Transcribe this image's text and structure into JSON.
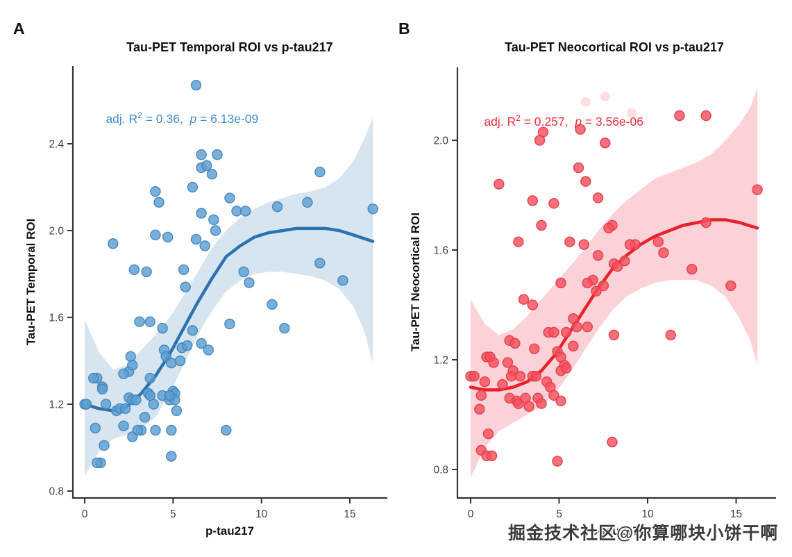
{
  "watermark": "掘金技术社区@你算哪块小饼干啊",
  "chart_data": [
    {
      "type": "scatter",
      "letter": "A",
      "title": "Tau-PET Temporal ROI vs p-tau217",
      "xlabel": "p-tau217",
      "ylabel": "Tau-PET Temporal ROI",
      "annotation": {
        "prefix": "adj. R",
        "sup": "2",
        "mid": " = 0.36,  ",
        "p": "p",
        "suffix": " = 6.13e-09"
      },
      "legend": "none",
      "grid": false,
      "x_ticks": [
        0,
        5,
        10,
        15
      ],
      "y_ticks": [
        0.8,
        1.2,
        1.6,
        2.0,
        2.4
      ],
      "xlim": [
        -0.7,
        17.0
      ],
      "ylim": [
        0.77,
        2.76
      ],
      "colors": {
        "point": "#5C9FD3",
        "point_stroke": "#4384B8",
        "curve": "#2B72B0",
        "band": "#C9DCEC",
        "annotation": "#3F8FCE"
      },
      "points": [
        [
          6.3,
          2.67
        ],
        [
          6.6,
          2.35
        ],
        [
          7.5,
          2.35
        ],
        [
          6.6,
          2.29
        ],
        [
          6.9,
          2.3
        ],
        [
          7.2,
          2.26
        ],
        [
          6.1,
          2.2
        ],
        [
          4.0,
          2.18
        ],
        [
          4.2,
          2.13
        ],
        [
          6.6,
          2.08
        ],
        [
          7.3,
          2.05
        ],
        [
          7.4,
          2.0
        ],
        [
          4.0,
          1.98
        ],
        [
          4.7,
          1.97
        ],
        [
          6.3,
          1.96
        ],
        [
          6.8,
          1.93
        ],
        [
          1.6,
          1.94
        ],
        [
          2.8,
          1.82
        ],
        [
          3.5,
          1.81
        ],
        [
          5.6,
          1.82
        ],
        [
          5.7,
          1.74
        ],
        [
          13.3,
          2.27
        ],
        [
          12.6,
          2.13
        ],
        [
          10.9,
          2.11
        ],
        [
          16.3,
          2.1
        ],
        [
          8.6,
          2.09
        ],
        [
          9.1,
          2.09
        ],
        [
          8.2,
          2.15
        ],
        [
          13.3,
          1.85
        ],
        [
          9.0,
          1.81
        ],
        [
          14.6,
          1.77
        ],
        [
          9.3,
          1.76
        ],
        [
          3.1,
          1.58
        ],
        [
          3.7,
          1.58
        ],
        [
          4.4,
          1.55
        ],
        [
          6.1,
          1.54
        ],
        [
          6.6,
          1.48
        ],
        [
          7.0,
          1.45
        ],
        [
          4.5,
          1.45
        ],
        [
          4.6,
          1.42
        ],
        [
          4.9,
          1.39
        ],
        [
          5.4,
          1.4
        ],
        [
          5.5,
          1.46
        ],
        [
          5.8,
          1.47
        ],
        [
          2.6,
          1.42
        ],
        [
          0.7,
          1.32
        ],
        [
          0.5,
          1.32
        ],
        [
          1.0,
          1.28
        ],
        [
          1.0,
          1.27
        ],
        [
          2.5,
          1.35
        ],
        [
          2.2,
          1.34
        ],
        [
          2.7,
          1.38
        ],
        [
          3.7,
          1.32
        ],
        [
          3.6,
          1.25
        ],
        [
          3.7,
          1.24
        ],
        [
          4.4,
          1.24
        ],
        [
          5.0,
          1.26
        ],
        [
          5.1,
          1.25
        ],
        [
          0.0,
          1.2
        ],
        [
          0.1,
          1.2
        ],
        [
          1.2,
          1.2
        ],
        [
          1.8,
          1.17
        ],
        [
          2.0,
          1.18
        ],
        [
          2.3,
          1.18
        ],
        [
          2.5,
          1.23
        ],
        [
          2.7,
          1.22
        ],
        [
          2.9,
          1.22
        ],
        [
          3.9,
          1.2
        ],
        [
          4.8,
          1.22
        ],
        [
          5.1,
          1.22
        ],
        [
          4.8,
          1.24
        ],
        [
          5.2,
          1.17
        ],
        [
          0.6,
          1.09
        ],
        [
          2.2,
          1.1
        ],
        [
          3.2,
          1.08
        ],
        [
          2.7,
          1.05
        ],
        [
          3.0,
          1.08
        ],
        [
          4.0,
          1.08
        ],
        [
          4.9,
          1.08
        ],
        [
          8.0,
          1.08
        ],
        [
          3.4,
          1.14
        ],
        [
          1.1,
          1.01
        ],
        [
          0.9,
          0.93
        ],
        [
          0.7,
          0.93
        ],
        [
          4.9,
          0.96
        ],
        [
          10.6,
          1.66
        ],
        [
          11.3,
          1.55
        ],
        [
          8.2,
          1.57
        ]
      ],
      "pale_points": [],
      "curve": [
        [
          0,
          1.2
        ],
        [
          0.8,
          1.18
        ],
        [
          1.6,
          1.17
        ],
        [
          2.4,
          1.19
        ],
        [
          3.2,
          1.25
        ],
        [
          4,
          1.33
        ],
        [
          4.8,
          1.43
        ],
        [
          5.6,
          1.55
        ],
        [
          6.4,
          1.67
        ],
        [
          7.2,
          1.78
        ],
        [
          8,
          1.88
        ],
        [
          8.8,
          1.93
        ],
        [
          9.6,
          1.97
        ],
        [
          10.4,
          1.99
        ],
        [
          11.2,
          2.0
        ],
        [
          12,
          2.01
        ],
        [
          12.8,
          2.01
        ],
        [
          13.6,
          2.01
        ],
        [
          14.4,
          2.0
        ],
        [
          15.2,
          1.98
        ],
        [
          16.3,
          1.95
        ]
      ],
      "band_upper": [
        [
          0,
          1.59
        ],
        [
          0.8,
          1.44
        ],
        [
          1.6,
          1.36
        ],
        [
          2.4,
          1.38
        ],
        [
          3.2,
          1.45
        ],
        [
          4,
          1.52
        ],
        [
          4.8,
          1.6
        ],
        [
          5.6,
          1.7
        ],
        [
          6.4,
          1.81
        ],
        [
          7.2,
          1.92
        ],
        [
          8,
          2.0
        ],
        [
          8.8,
          2.06
        ],
        [
          9.6,
          2.1
        ],
        [
          10.4,
          2.13
        ],
        [
          11.2,
          2.15
        ],
        [
          12,
          2.17
        ],
        [
          12.8,
          2.18
        ],
        [
          13.6,
          2.2
        ],
        [
          14.4,
          2.24
        ],
        [
          15.2,
          2.32
        ],
        [
          15.8,
          2.42
        ],
        [
          16.3,
          2.52
        ]
      ],
      "band_lower": [
        [
          0,
          0.87
        ],
        [
          0.8,
          0.98
        ],
        [
          1.6,
          1.04
        ],
        [
          2.4,
          1.06
        ],
        [
          3.2,
          1.09
        ],
        [
          4,
          1.14
        ],
        [
          4.8,
          1.25
        ],
        [
          5.6,
          1.38
        ],
        [
          6.4,
          1.52
        ],
        [
          7.2,
          1.63
        ],
        [
          8,
          1.72
        ],
        [
          8.8,
          1.77
        ],
        [
          9.6,
          1.8
        ],
        [
          10.4,
          1.81
        ],
        [
          11.2,
          1.81
        ],
        [
          12,
          1.8
        ],
        [
          12.8,
          1.79
        ],
        [
          13.6,
          1.77
        ],
        [
          14.4,
          1.73
        ],
        [
          15.2,
          1.65
        ],
        [
          15.8,
          1.54
        ],
        [
          16.3,
          1.39
        ]
      ]
    },
    {
      "type": "scatter",
      "letter": "B",
      "title": "Tau-PET Neocortical ROI vs p-tau217",
      "xlabel": "p-tau217",
      "ylabel": "Tau-PET Neocortical ROI",
      "annotation": {
        "prefix": "adj. R",
        "sup": "2",
        "mid": " = 0.257,  ",
        "p": "p",
        "suffix": " = 3.56e-06"
      },
      "legend": "none",
      "grid": false,
      "x_ticks": [
        0,
        5,
        10,
        15
      ],
      "y_ticks": [
        0.8,
        1.2,
        1.6,
        2.0
      ],
      "xlim": [
        -0.75,
        16.9
      ],
      "ylim": [
        0.7,
        2.27
      ],
      "colors": {
        "point": "#F4505E",
        "point_stroke": "#E63A49",
        "curve": "#E8212A",
        "band": "#F9C3CA",
        "annotation": "#EF2D3A"
      },
      "points": [
        [
          4.1,
          2.03
        ],
        [
          3.9,
          2.0
        ],
        [
          6.2,
          2.04
        ],
        [
          7.6,
          1.99
        ],
        [
          11.8,
          2.09
        ],
        [
          13.3,
          2.09
        ],
        [
          1.6,
          1.84
        ],
        [
          6.1,
          1.9
        ],
        [
          6.5,
          1.85
        ],
        [
          7.2,
          1.79
        ],
        [
          3.5,
          1.78
        ],
        [
          4.7,
          1.77
        ],
        [
          4.0,
          1.69
        ],
        [
          2.7,
          1.63
        ],
        [
          5.6,
          1.63
        ],
        [
          6.4,
          1.62
        ],
        [
          7.2,
          1.58
        ],
        [
          8.0,
          1.69
        ],
        [
          7.8,
          1.68
        ],
        [
          8.1,
          1.55
        ],
        [
          6.9,
          1.49
        ],
        [
          5.1,
          1.48
        ],
        [
          16.2,
          1.82
        ],
        [
          13.3,
          1.7
        ],
        [
          10.6,
          1.63
        ],
        [
          9.3,
          1.62
        ],
        [
          9.0,
          1.62
        ],
        [
          10.9,
          1.59
        ],
        [
          8.7,
          1.56
        ],
        [
          12.5,
          1.53
        ],
        [
          14.7,
          1.47
        ],
        [
          3.0,
          1.42
        ],
        [
          3.5,
          1.4
        ],
        [
          6.6,
          1.48
        ],
        [
          7.1,
          1.45
        ],
        [
          7.5,
          1.47
        ],
        [
          8.3,
          1.54
        ],
        [
          5.8,
          1.35
        ],
        [
          6.0,
          1.32
        ],
        [
          6.6,
          1.32
        ],
        [
          4.4,
          1.3
        ],
        [
          4.7,
          1.3
        ],
        [
          5.4,
          1.3
        ],
        [
          5.8,
          1.25
        ],
        [
          8.1,
          1.29
        ],
        [
          2.2,
          1.27
        ],
        [
          2.5,
          1.26
        ],
        [
          0.9,
          1.21
        ],
        [
          1.1,
          1.21
        ],
        [
          1.3,
          1.19
        ],
        [
          2.1,
          1.19
        ],
        [
          3.6,
          1.24
        ],
        [
          4.9,
          1.23
        ],
        [
          5.1,
          1.21
        ],
        [
          5.3,
          1.18
        ],
        [
          5.1,
          1.16
        ],
        [
          5.4,
          1.17
        ],
        [
          2.4,
          1.16
        ],
        [
          2.3,
          1.14
        ],
        [
          2.8,
          1.14
        ],
        [
          0.0,
          1.14
        ],
        [
          0.2,
          1.14
        ],
        [
          0.8,
          1.12
        ],
        [
          1.8,
          1.11
        ],
        [
          3.5,
          1.14
        ],
        [
          3.7,
          1.14
        ],
        [
          4.3,
          1.12
        ],
        [
          4.5,
          1.1
        ],
        [
          0.6,
          1.07
        ],
        [
          2.2,
          1.06
        ],
        [
          2.6,
          1.05
        ],
        [
          2.7,
          1.04
        ],
        [
          3.1,
          1.06
        ],
        [
          3.3,
          1.03
        ],
        [
          3.8,
          1.06
        ],
        [
          4.0,
          1.04
        ],
        [
          4.7,
          1.07
        ],
        [
          5.1,
          1.05
        ],
        [
          0.5,
          1.02
        ],
        [
          1.0,
          0.93
        ],
        [
          0.6,
          0.87
        ],
        [
          0.9,
          0.85
        ],
        [
          1.2,
          0.85
        ],
        [
          8.0,
          0.9
        ],
        [
          4.9,
          0.83
        ],
        [
          11.3,
          1.29
        ]
      ],
      "pale_points": [
        [
          6.5,
          2.14
        ],
        [
          7.6,
          2.16
        ],
        [
          9.1,
          2.1
        ]
      ],
      "curve": [
        [
          0,
          1.1
        ],
        [
          0.8,
          1.09
        ],
        [
          1.6,
          1.09
        ],
        [
          2.4,
          1.1
        ],
        [
          3.2,
          1.12
        ],
        [
          4,
          1.16
        ],
        [
          4.8,
          1.22
        ],
        [
          5.6,
          1.3
        ],
        [
          6.4,
          1.38
        ],
        [
          7.2,
          1.46
        ],
        [
          8,
          1.53
        ],
        [
          8.8,
          1.58
        ],
        [
          9.6,
          1.62
        ],
        [
          10.4,
          1.65
        ],
        [
          11.2,
          1.67
        ],
        [
          12,
          1.69
        ],
        [
          12.8,
          1.7
        ],
        [
          13.6,
          1.71
        ],
        [
          14.4,
          1.71
        ],
        [
          15.2,
          1.7
        ],
        [
          16.2,
          1.68
        ]
      ],
      "band_upper": [
        [
          0,
          1.42
        ],
        [
          0.8,
          1.33
        ],
        [
          1.6,
          1.29
        ],
        [
          2.4,
          1.31
        ],
        [
          3.2,
          1.36
        ],
        [
          4,
          1.42
        ],
        [
          4.8,
          1.48
        ],
        [
          5.6,
          1.54
        ],
        [
          6.4,
          1.6
        ],
        [
          7.2,
          1.67
        ],
        [
          8,
          1.73
        ],
        [
          8.8,
          1.78
        ],
        [
          9.6,
          1.82
        ],
        [
          10.4,
          1.86
        ],
        [
          11.2,
          1.88
        ],
        [
          12,
          1.9
        ],
        [
          12.8,
          1.92
        ],
        [
          13.6,
          1.95
        ],
        [
          14.4,
          2.0
        ],
        [
          15.2,
          2.06
        ],
        [
          15.8,
          2.12
        ],
        [
          16.2,
          2.19
        ]
      ],
      "band_lower": [
        [
          0,
          0.77
        ],
        [
          0.8,
          0.88
        ],
        [
          1.6,
          0.94
        ],
        [
          2.4,
          0.97
        ],
        [
          3.2,
          1.0
        ],
        [
          4,
          1.03
        ],
        [
          4.8,
          1.08
        ],
        [
          5.6,
          1.15
        ],
        [
          6.4,
          1.23
        ],
        [
          7.2,
          1.31
        ],
        [
          8,
          1.38
        ],
        [
          8.8,
          1.43
        ],
        [
          9.6,
          1.46
        ],
        [
          10.4,
          1.48
        ],
        [
          11.2,
          1.49
        ],
        [
          12,
          1.49
        ],
        [
          12.8,
          1.49
        ],
        [
          13.6,
          1.47
        ],
        [
          14.4,
          1.43
        ],
        [
          15.2,
          1.35
        ],
        [
          15.8,
          1.27
        ],
        [
          16.2,
          1.18
        ]
      ]
    }
  ]
}
